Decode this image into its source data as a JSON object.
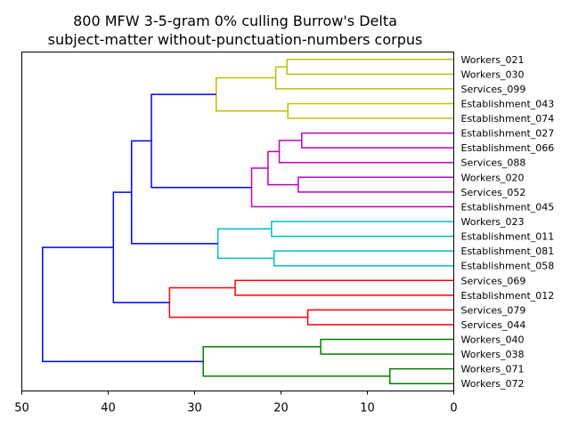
{
  "chart_data": {
    "type": "dendrogram",
    "title_lines": [
      "800 MFW 3-5-gram 0% culling Burrow's Delta",
      "subject-matter without-punctuation-numbers corpus"
    ],
    "orientation": "left",
    "xlim": [
      50,
      0
    ],
    "x_ticks": [
      50,
      40,
      30,
      20,
      10,
      0
    ],
    "above_threshold_color": "#0000ff",
    "leaves": [
      "Workers_021",
      "Workers_030",
      "Services_099",
      "Establishment_043",
      "Establishment_074",
      "Establishment_027",
      "Establishment_066",
      "Services_088",
      "Workers_020",
      "Services_052",
      "Establishment_045",
      "Workers_023",
      "Establishment_011",
      "Establishment_081",
      "Establishment_058",
      "Services_069",
      "Establishment_012",
      "Services_079",
      "Services_044",
      "Workers_040",
      "Workers_038",
      "Workers_071",
      "Workers_072"
    ],
    "merges": [
      {
        "left": "Workers_071",
        "right": "Workers_072",
        "height": 7.4,
        "color": "#008000"
      },
      {
        "left": "Workers_040",
        "right": "Workers_038",
        "height": 15.4,
        "color": "#008000"
      },
      {
        "left": "Workers_021",
        "right": "Workers_030",
        "height": 19.3,
        "color": "#bfbf00"
      },
      {
        "left": "Workers_020",
        "right": "Services_052",
        "height": 18.0,
        "color": "#bf00bf"
      },
      {
        "left": "Establishment_027",
        "right": "Establishment_066",
        "height": 17.6,
        "color": "#bf00bf"
      },
      {
        "left": "Services_079",
        "right": "Services_044",
        "height": 16.9,
        "color": "#ff0000"
      },
      {
        "left": "Establishment_043",
        "right": "Establishment_074",
        "height": 19.2,
        "color": "#bfbf00"
      },
      {
        "left": "m05",
        "right": "Services_088",
        "height": 20.2,
        "color": "#bf00bf"
      },
      {
        "left": "m08",
        "right": "m04",
        "height": 21.5,
        "color": "#bf00bf"
      },
      {
        "left": "Workers_023",
        "right": "Establishment_011",
        "height": 21.1,
        "color": "#00bfbf"
      },
      {
        "left": "Establishment_081",
        "right": "Establishment_058",
        "height": 20.8,
        "color": "#00bfbf"
      },
      {
        "left": "m03",
        "right": "Services_099",
        "height": 20.6,
        "color": "#bfbf00"
      },
      {
        "left": "m09",
        "right": "Establishment_045",
        "height": 23.4,
        "color": "#bf00bf"
      },
      {
        "left": "Services_069",
        "right": "Establishment_012",
        "height": 25.3,
        "color": "#ff0000"
      },
      {
        "left": "m10",
        "right": "m11",
        "height": 27.3,
        "color": "#00bfbf"
      },
      {
        "left": "m12",
        "right": "m07",
        "height": 27.5,
        "color": "#bfbf00"
      },
      {
        "left": "m02",
        "right": "m01",
        "height": 29.0,
        "color": "#008000"
      },
      {
        "left": "m14",
        "right": "m06",
        "height": 32.9,
        "color": "#ff0000"
      },
      {
        "left": "m16",
        "right": "m13",
        "height": 35.0,
        "color": "#0000ff"
      },
      {
        "left": "m19",
        "right": "m15",
        "height": 37.3,
        "color": "#0000ff"
      },
      {
        "left": "m20",
        "right": "m18",
        "height": 39.4,
        "color": "#0000ff"
      },
      {
        "left": "m21",
        "right": "m17",
        "height": 47.6,
        "color": "#0000ff"
      }
    ]
  }
}
